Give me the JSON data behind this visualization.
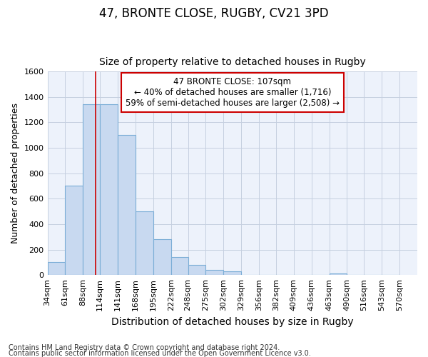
{
  "title1": "47, BRONTE CLOSE, RUGBY, CV21 3PD",
  "title2": "Size of property relative to detached houses in Rugby",
  "xlabel": "Distribution of detached houses by size in Rugby",
  "ylabel": "Number of detached properties",
  "footer1": "Contains HM Land Registry data © Crown copyright and database right 2024.",
  "footer2": "Contains public sector information licensed under the Open Government Licence v3.0.",
  "annotation_title": "47 BRONTE CLOSE: 107sqm",
  "annotation_line1": "← 40% of detached houses are smaller (1,716)",
  "annotation_line2": "59% of semi-detached houses are larger (2,508) →",
  "bar_left_edges": [
    34,
    61,
    88,
    114,
    141,
    168,
    195,
    222,
    248,
    275,
    302,
    329,
    356,
    382,
    409,
    436,
    463,
    490,
    516,
    543
  ],
  "bar_widths": [
    27,
    27,
    26,
    27,
    27,
    27,
    27,
    26,
    27,
    27,
    27,
    27,
    26,
    27,
    27,
    27,
    27,
    26,
    27,
    27
  ],
  "bar_heights": [
    100,
    700,
    1340,
    1340,
    1100,
    500,
    280,
    140,
    80,
    40,
    30,
    0,
    0,
    0,
    0,
    0,
    15,
    0,
    0,
    0
  ],
  "bar_color": "#c8d9f0",
  "bar_edge_color": "#7aadd6",
  "grid_color": "#c5cfe0",
  "bg_color": "#edf2fb",
  "vline_color": "#cc0000",
  "vline_x": 107,
  "ylim": [
    0,
    1600
  ],
  "yticks": [
    0,
    200,
    400,
    600,
    800,
    1000,
    1200,
    1400,
    1600
  ],
  "xtick_labels": [
    "34sqm",
    "61sqm",
    "88sqm",
    "114sqm",
    "141sqm",
    "168sqm",
    "195sqm",
    "222sqm",
    "248sqm",
    "275sqm",
    "302sqm",
    "329sqm",
    "356sqm",
    "382sqm",
    "409sqm",
    "436sqm",
    "463sqm",
    "490sqm",
    "516sqm",
    "543sqm",
    "570sqm"
  ],
  "xlim_left": 34,
  "xlim_right": 597,
  "annotation_box_color": "#ffffff",
  "annotation_box_edge": "#cc0000",
  "title1_fontsize": 12,
  "title2_fontsize": 10,
  "xlabel_fontsize": 10,
  "ylabel_fontsize": 9,
  "tick_fontsize": 8,
  "annotation_fontsize": 8.5,
  "footer_fontsize": 7
}
